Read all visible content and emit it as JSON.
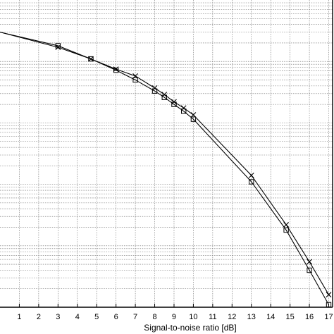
{
  "chart_data": {
    "type": "line",
    "title": "",
    "xlabel": "Signal-to-noise ratio [dB]",
    "ylabel": "",
    "y_scale": "log",
    "grid": true,
    "xlim": [
      0,
      17.2
    ],
    "ylim": [
      1e-05,
      1
    ],
    "x_ticks": [
      1,
      2,
      3,
      4,
      5,
      6,
      7,
      8,
      9,
      10,
      11,
      12,
      13,
      14,
      15,
      16,
      17
    ],
    "x_tick_labels": [
      "1",
      "2",
      "3",
      "4",
      "5",
      "6",
      "7",
      "8",
      "9",
      "10",
      "11",
      "12",
      "13",
      "14",
      "15",
      "16",
      "17"
    ],
    "series": [
      {
        "marker": "square",
        "x": [
          0,
          3,
          4.7,
          6,
          7,
          8,
          8.5,
          9,
          9.5,
          10,
          13,
          14.8,
          16,
          17
        ],
        "y": [
          0.3,
          0.18,
          0.11,
          0.072,
          0.05,
          0.033,
          0.026,
          0.02,
          0.0155,
          0.0115,
          0.0011,
          0.00018,
          4e-05,
          1.1e-05
        ]
      },
      {
        "marker": "x",
        "x": [
          0,
          3,
          4.7,
          6,
          7,
          8,
          8.5,
          9,
          9.5,
          10,
          13,
          14.8,
          16,
          17
        ],
        "y": [
          0.3,
          0.17,
          0.11,
          0.075,
          0.058,
          0.037,
          0.029,
          0.022,
          0.0175,
          0.0135,
          0.0014,
          0.00022,
          5.5e-05,
          1.6e-05
        ]
      }
    ]
  }
}
